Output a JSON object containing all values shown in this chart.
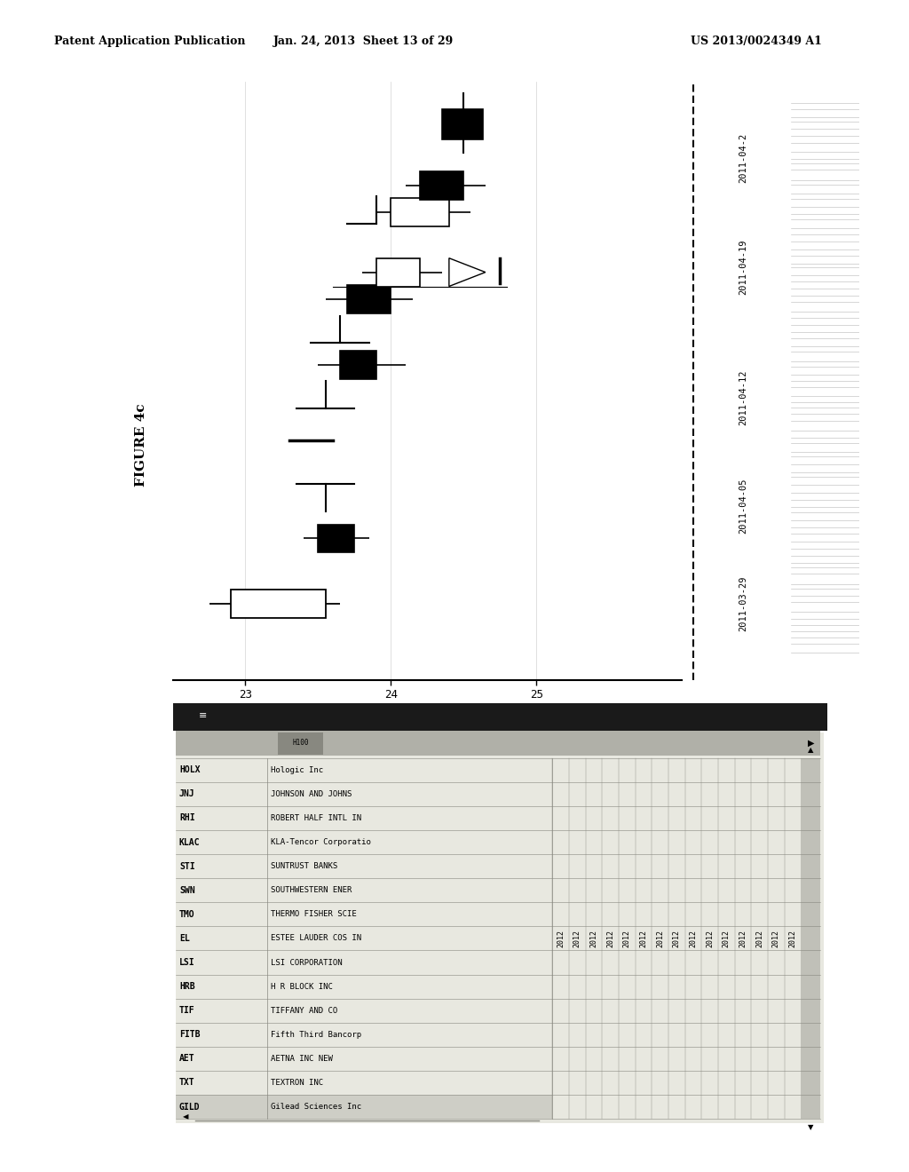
{
  "header_left": "Patent Application Publication",
  "header_center": "Jan. 24, 2013  Sheet 13 of 29",
  "header_right": "US 2013/0024349 A1",
  "figure_label": "FIGURE 4c",
  "bg_color": "#ffffff",
  "date_labels": [
    "2011-03-29",
    "2011-04-05",
    "2011-04-12",
    "2011-04-19",
    "2011-04-2"
  ],
  "x_ticks": [
    23,
    24,
    25
  ],
  "table_tickers": [
    "HOLX",
    "JNJ",
    "RHI",
    "KLAC",
    "STI",
    "SWN",
    "TMO",
    "EL",
    "LSI",
    "HRB",
    "TIF",
    "FITB",
    "AET",
    "TXT",
    "GILD"
  ],
  "table_names": [
    "Hologic Inc",
    "JOHNSON AND JOHNS",
    "ROBERT HALF INTL IN",
    "KLA-Tencor Corporatio",
    "SUNTRUST BANKS",
    "SOUTHWESTERN ENER",
    "THERMO FISHER SCIE",
    "ESTEE LAUDER COS IN",
    "LSI CORPORATION",
    "H R BLOCK INC",
    "TIFFANY AND CO",
    "Fifth Third Bancorp",
    "AETNA INC NEW",
    "TEXTRON INC",
    "Gilead Sciences Inc"
  ],
  "table_years": [
    "2012",
    "2012",
    "2012",
    "2012",
    "2012",
    "2012",
    "2012",
    "2012",
    "2012",
    "2012",
    "2012",
    "2012",
    "2012",
    "2012",
    "2012"
  ]
}
